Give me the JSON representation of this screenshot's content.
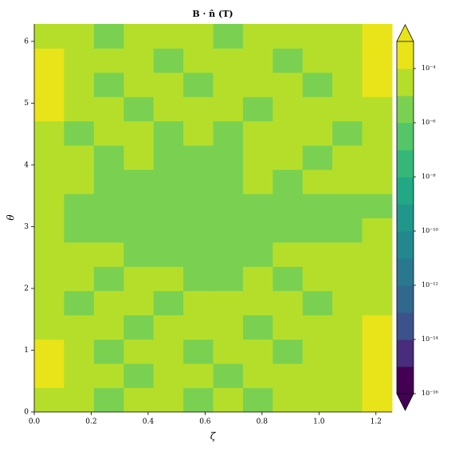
{
  "chart_data": {
    "type": "contour",
    "title": "B · n̂ (T)",
    "xlabel": "ζ",
    "ylabel": "θ",
    "xlim": [
      0,
      1.2566
    ],
    "ylim": [
      0,
      6.2832
    ],
    "xticks": [
      {
        "value": 0,
        "label": "0.0"
      },
      0.2,
      0.4,
      0.6,
      0.8,
      {
        "value": 1,
        "label": "1.0"
      },
      1.2
    ],
    "yticks": [
      0,
      1,
      2,
      3,
      4,
      5,
      6
    ],
    "x": [
      0,
      0.1047,
      0.2094,
      0.3142,
      0.4189,
      0.5236,
      0.6283,
      0.733,
      0.8378,
      0.9425,
      1.0472,
      1.1519,
      1.2566
    ],
    "y": [
      0,
      0.3927,
      0.7854,
      1.1781,
      1.5708,
      1.9635,
      2.3562,
      2.7489,
      3.1416,
      3.5343,
      3.927,
      4.3197,
      4.7124,
      5.1051,
      5.4978,
      5.8905,
      6.2832
    ],
    "z": [
      [
        3e-05,
        3e-05,
        3e-06,
        3e-05,
        3e-05,
        3e-06,
        3e-05,
        3e-06,
        3e-05,
        3e-05,
        3e-05,
        0.0002
      ],
      [
        0.0002,
        3e-05,
        3e-05,
        3e-06,
        3e-05,
        3e-05,
        3e-06,
        3e-05,
        3e-05,
        3e-05,
        3e-05,
        0.0002
      ],
      [
        0.0002,
        3e-05,
        3e-06,
        3e-05,
        3e-05,
        3e-06,
        3e-05,
        3e-05,
        3e-06,
        3e-05,
        3e-05,
        0.0002
      ],
      [
        3e-05,
        3e-05,
        3e-05,
        3e-06,
        3e-05,
        3e-05,
        3e-05,
        3e-06,
        3e-05,
        3e-05,
        3e-05,
        0.0002
      ],
      [
        3e-05,
        3e-06,
        3e-05,
        3e-05,
        3e-06,
        3e-05,
        3e-05,
        3e-05,
        3e-05,
        3e-06,
        3e-05,
        3e-05
      ],
      [
        3e-05,
        3e-05,
        3e-06,
        3e-05,
        3e-05,
        3e-06,
        3e-06,
        3e-05,
        3e-06,
        3e-05,
        3e-05,
        3e-05
      ],
      [
        3e-05,
        3e-05,
        3e-05,
        3e-06,
        3e-06,
        3e-06,
        3e-06,
        3e-06,
        3e-05,
        3e-05,
        3e-05,
        3e-05
      ],
      [
        3e-05,
        3e-06,
        3e-06,
        3e-06,
        3e-06,
        3e-06,
        3e-06,
        3e-06,
        3e-06,
        3e-06,
        3e-06,
        3e-05
      ],
      [
        3e-05,
        3e-06,
        3e-06,
        3e-06,
        3e-06,
        3e-06,
        3e-06,
        3e-06,
        3e-06,
        3e-06,
        3e-06,
        3e-06
      ],
      [
        3e-05,
        3e-05,
        3e-06,
        3e-06,
        3e-06,
        3e-06,
        3e-06,
        3e-05,
        3e-06,
        3e-05,
        3e-05,
        3e-05
      ],
      [
        3e-05,
        3e-05,
        3e-06,
        3e-05,
        3e-06,
        3e-06,
        3e-06,
        3e-05,
        3e-05,
        3e-06,
        3e-05,
        3e-05
      ],
      [
        3e-05,
        3e-06,
        3e-05,
        3e-05,
        3e-06,
        3e-05,
        3e-06,
        3e-05,
        3e-05,
        3e-05,
        3e-06,
        3e-05
      ],
      [
        0.0002,
        3e-05,
        3e-05,
        3e-06,
        3e-05,
        3e-05,
        3e-05,
        3e-06,
        3e-05,
        3e-05,
        3e-05,
        3e-05
      ],
      [
        0.0002,
        3e-05,
        3e-06,
        3e-05,
        3e-05,
        3e-06,
        3e-05,
        3e-05,
        3e-05,
        3e-06,
        3e-05,
        0.0002
      ],
      [
        0.0002,
        3e-05,
        3e-05,
        3e-05,
        3e-06,
        3e-05,
        3e-05,
        3e-05,
        3e-06,
        3e-05,
        3e-05,
        0.0002
      ],
      [
        3e-05,
        3e-05,
        3e-06,
        3e-05,
        3e-05,
        3e-05,
        3e-06,
        3e-05,
        3e-05,
        3e-05,
        3e-05,
        0.0002
      ]
    ],
    "log_color": true,
    "levels": [
      1e-16,
      1e-15,
      1e-14,
      1e-13,
      1e-12,
      1e-11,
      1e-10,
      1e-09,
      1e-08,
      1e-07,
      1e-06,
      1e-05,
      0.0001,
      0.001
    ],
    "colors": [
      "#440154",
      "#472d7b",
      "#3b528b",
      "#31688e",
      "#2a788e",
      "#23888e",
      "#1f988b",
      "#22a884",
      "#35b779",
      "#54c568",
      "#7ad151",
      "#b5de2b",
      "#e8e419"
    ],
    "cticks": [
      {
        "value": 1e-16,
        "label": "10⁻¹⁶"
      },
      {
        "value": 1e-14,
        "label": "10⁻¹⁴"
      },
      {
        "value": 1e-12,
        "label": "10⁻¹²"
      },
      {
        "value": 1e-10,
        "label": "10⁻¹⁰"
      },
      {
        "value": 1e-08,
        "label": "10⁻⁸"
      },
      {
        "value": 1e-06,
        "label": "10⁻⁶"
      },
      {
        "value": 0.0001,
        "label": "10⁻⁴"
      }
    ]
  }
}
